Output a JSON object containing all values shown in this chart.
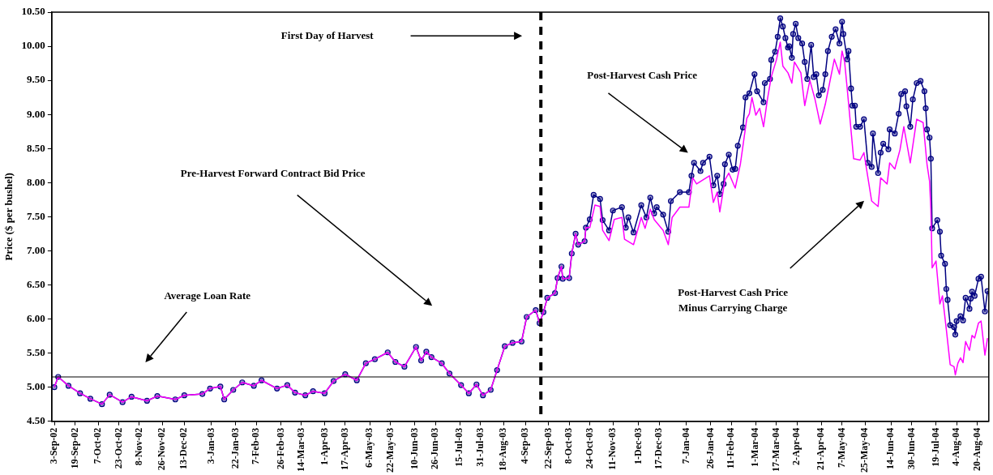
{
  "chart_data": {
    "type": "line",
    "ylabel": "Price ($ per bushel)",
    "ylim": [
      4.5,
      10.5
    ],
    "yticks": [
      {
        "value": 4.5,
        "label": "4.50"
      },
      {
        "value": 5,
        "label": "5.00"
      },
      {
        "value": 5.5,
        "label": "5.50"
      },
      {
        "value": 6,
        "label": "6.00"
      },
      {
        "value": 6.5,
        "label": "6.50"
      },
      {
        "value": 7,
        "label": "7.00"
      },
      {
        "value": 7.5,
        "label": "7.50"
      },
      {
        "value": 8,
        "label": "8.00"
      },
      {
        "value": 8.5,
        "label": "8.50"
      },
      {
        "value": 9,
        "label": "9.00"
      },
      {
        "value": 9.5,
        "label": "9.50"
      },
      {
        "value": 10,
        "label": "10.00"
      },
      {
        "value": 10.5,
        "label": "10.50"
      }
    ],
    "xlim": [
      "2002-09-01",
      "2004-08-29"
    ],
    "xticks": [
      {
        "value": "2002-09-03",
        "label": "3-Sep-02"
      },
      {
        "value": "2002-09-19",
        "label": "19-Sep-02"
      },
      {
        "value": "2002-10-07",
        "label": "7-Oct-02"
      },
      {
        "value": "2002-10-23",
        "label": "23-Oct-02"
      },
      {
        "value": "2002-11-08",
        "label": "8-Nov-02"
      },
      {
        "value": "2002-11-26",
        "label": "26-Nov-02"
      },
      {
        "value": "2002-12-13",
        "label": "13-Dec-02"
      },
      {
        "value": "2003-01-03",
        "label": "3-Jan-03"
      },
      {
        "value": "2003-01-22",
        "label": "22-Jan-03"
      },
      {
        "value": "2003-02-07",
        "label": "7-Feb-03"
      },
      {
        "value": "2003-02-26",
        "label": "26-Feb-03"
      },
      {
        "value": "2003-03-14",
        "label": "14-Mar-03"
      },
      {
        "value": "2003-04-01",
        "label": "1-Apr-03"
      },
      {
        "value": "2003-04-17",
        "label": "17-Apr-03"
      },
      {
        "value": "2003-05-06",
        "label": "6-May-03"
      },
      {
        "value": "2003-05-22",
        "label": "22-May-03"
      },
      {
        "value": "2003-06-10",
        "label": "10-Jun-03"
      },
      {
        "value": "2003-06-26",
        "label": "26-Jun-03"
      },
      {
        "value": "2003-07-15",
        "label": "15-Jul-03"
      },
      {
        "value": "2003-07-31",
        "label": "31-Jul-03"
      },
      {
        "value": "2003-08-18",
        "label": "18-Aug-03"
      },
      {
        "value": "2003-09-04",
        "label": "4-Sep-03"
      },
      {
        "value": "2003-09-22",
        "label": "22-Sep-03"
      },
      {
        "value": "2003-10-08",
        "label": "8-Oct-03"
      },
      {
        "value": "2003-10-24",
        "label": "24-Oct-03"
      },
      {
        "value": "2003-11-11",
        "label": "11-Nov-03"
      },
      {
        "value": "2003-12-01",
        "label": "1-Dec-03"
      },
      {
        "value": "2003-12-17",
        "label": "17-Dec-03"
      },
      {
        "value": "2004-01-07",
        "label": "7-Jan-04"
      },
      {
        "value": "2004-01-26",
        "label": "26-Jan-04"
      },
      {
        "value": "2004-02-11",
        "label": "11-Feb-04"
      },
      {
        "value": "2004-03-01",
        "label": "1-Mar-04"
      },
      {
        "value": "2004-03-17",
        "label": "17-Mar-04"
      },
      {
        "value": "2004-04-02",
        "label": "2-Apr-04"
      },
      {
        "value": "2004-04-21",
        "label": "21-Apr-04"
      },
      {
        "value": "2004-05-07",
        "label": "7-May-04"
      },
      {
        "value": "2004-05-25",
        "label": "25-May-04"
      },
      {
        "value": "2004-06-14",
        "label": "14-Jun-04"
      },
      {
        "value": "2004-06-30",
        "label": "30-Jun-04"
      },
      {
        "value": "2004-07-19",
        "label": "19-Jul-04"
      },
      {
        "value": "2004-08-04",
        "label": "4-Aug-04"
      },
      {
        "value": "2004-08-20",
        "label": "20-Aug-04"
      }
    ],
    "grid": false,
    "legend": false,
    "series": [
      {
        "color": "#ff00ff",
        "marker": "none",
        "x": [
          "2002-09-03",
          "2002-09-06",
          "2002-09-14",
          "2002-09-23",
          "2002-10-01",
          "2002-10-10",
          "2002-10-16",
          "2002-10-26",
          "2002-11-02",
          "2002-11-14",
          "2002-11-22",
          "2002-12-06",
          "2002-12-13",
          "2002-12-27",
          "2003-01-02",
          "2003-01-10",
          "2003-01-13",
          "2003-01-20",
          "2003-01-27",
          "2003-02-05",
          "2003-02-11",
          "2003-02-23",
          "2003-03-03",
          "2003-03-09",
          "2003-03-17",
          "2003-03-23",
          "2003-04-01",
          "2003-04-08",
          "2003-04-17",
          "2003-04-26",
          "2003-05-03",
          "2003-05-10",
          "2003-05-20",
          "2003-05-26",
          "2003-06-02",
          "2003-06-11",
          "2003-06-15",
          "2003-06-19",
          "2003-06-23",
          "2003-07-01",
          "2003-07-07",
          "2003-07-16",
          "2003-07-22",
          "2003-07-28",
          "2003-08-02",
          "2003-08-08",
          "2003-08-13",
          "2003-08-19",
          "2003-08-25",
          "2003-09-01",
          "2003-09-05",
          "2003-09-12",
          "2003-09-15",
          "2003-09-18",
          "2003-09-21",
          "2003-09-27",
          "2003-09-29",
          "2003-10-02",
          "2003-10-03",
          "2003-10-08",
          "2003-10-10",
          "2003-10-13",
          "2003-10-15",
          "2003-10-20",
          "2003-10-21",
          "2003-10-24",
          "2003-10-28",
          "2003-11-01",
          "2003-11-03",
          "2003-11-08",
          "2003-11-12",
          "2003-11-18",
          "2003-11-20",
          "2003-11-27",
          "2003-12-03",
          "2003-12-06",
          "2003-12-10",
          "2003-12-13",
          "2003-12-20",
          "2003-12-24",
          "2003-12-27",
          "2004-01-02",
          "2004-01-09",
          "2004-01-12",
          "2004-01-15",
          "2004-01-20",
          "2004-01-25",
          "2004-01-28",
          "2004-01-31",
          "2004-02-02",
          "2004-02-06",
          "2004-02-09",
          "2004-02-14",
          "2004-02-18",
          "2004-02-23",
          "2004-02-25",
          "2004-02-27",
          "2004-03-01",
          "2004-03-04",
          "2004-03-07",
          "2004-03-10",
          "2004-03-13",
          "2004-03-17",
          "2004-03-20",
          "2004-03-22",
          "2004-03-26",
          "2004-03-29",
          "2004-03-31",
          "2004-04-05",
          "2004-04-08",
          "2004-04-12",
          "2004-04-16",
          "2004-04-20",
          "2004-04-24",
          "2004-04-27",
          "2004-05-01",
          "2004-05-05",
          "2004-05-07",
          "2004-05-09",
          "2004-05-11",
          "2004-05-16",
          "2004-05-21",
          "2004-05-24",
          "2004-05-30",
          "2004-06-04",
          "2004-06-06",
          "2004-06-11",
          "2004-06-13",
          "2004-06-17",
          "2004-06-21",
          "2004-06-24",
          "2004-06-29",
          "2004-07-04",
          "2004-07-09",
          "2004-07-12",
          "2004-07-14",
          "2004-07-15",
          "2004-07-16",
          "2004-07-19",
          "2004-07-22",
          "2004-07-24",
          "2004-07-27",
          "2004-07-30",
          "2004-08-02",
          "2004-08-03",
          "2004-08-05",
          "2004-08-07",
          "2004-08-09",
          "2004-08-11",
          "2004-08-14",
          "2004-08-16",
          "2004-08-18",
          "2004-08-21",
          "2004-08-23",
          "2004-08-26",
          "2004-08-28"
        ],
        "values": [
          5.0,
          5.15,
          5.02,
          4.91,
          4.83,
          4.75,
          4.89,
          4.78,
          4.86,
          4.8,
          4.87,
          4.82,
          4.88,
          4.9,
          4.98,
          5.01,
          4.82,
          4.96,
          5.07,
          5.02,
          5.1,
          4.98,
          5.03,
          4.92,
          4.88,
          4.94,
          4.91,
          5.09,
          5.19,
          5.1,
          5.35,
          5.41,
          5.51,
          5.37,
          5.3,
          5.59,
          5.39,
          5.52,
          5.44,
          5.35,
          5.2,
          5.03,
          4.91,
          5.04,
          4.88,
          4.96,
          5.25,
          5.6,
          5.65,
          5.67,
          6.03,
          6.13,
          5.94,
          6.1,
          6.31,
          6.38,
          6.6,
          6.77,
          6.59,
          6.6,
          6.96,
          7.25,
          7.09,
          7.14,
          7.34,
          7.34,
          7.67,
          7.65,
          7.3,
          7.15,
          7.46,
          7.49,
          7.17,
          7.09,
          7.49,
          7.33,
          7.61,
          7.46,
          7.3,
          7.09,
          7.49,
          7.64,
          7.64,
          8.07,
          7.98,
          8.04,
          8.1,
          7.71,
          7.86,
          7.57,
          8.04,
          8.14,
          7.92,
          8.27,
          8.94,
          9.01,
          9.25,
          8.99,
          9.09,
          8.82,
          9.22,
          9.55,
          9.8,
          10.06,
          9.71,
          9.61,
          9.46,
          9.77,
          9.61,
          9.13,
          9.5,
          9.22,
          8.86,
          9.15,
          9.43,
          9.81,
          9.59,
          9.93,
          9.77,
          9.38,
          8.35,
          8.33,
          8.44,
          7.73,
          7.65,
          8.07,
          7.98,
          8.29,
          8.2,
          8.48,
          8.82,
          8.29,
          8.93,
          8.88,
          8.27,
          8.02,
          7.61,
          6.75,
          6.85,
          6.22,
          6.34,
          5.85,
          5.33,
          5.3,
          5.18,
          5.35,
          5.43,
          5.36,
          5.67,
          5.54,
          5.76,
          5.72,
          5.94,
          5.97,
          5.47,
          5.72
        ]
      },
      {
        "color": "#000080",
        "marker": "circle",
        "x": [
          "2002-09-03",
          "2002-09-06",
          "2002-09-14",
          "2002-09-23",
          "2002-10-01",
          "2002-10-10",
          "2002-10-16",
          "2002-10-26",
          "2002-11-02",
          "2002-11-14",
          "2002-11-22",
          "2002-12-06",
          "2002-12-13",
          "2002-12-27",
          "2003-01-02",
          "2003-01-10",
          "2003-01-13",
          "2003-01-20",
          "2003-01-27",
          "2003-02-05",
          "2003-02-11",
          "2003-02-23",
          "2003-03-03",
          "2003-03-09",
          "2003-03-17",
          "2003-03-23",
          "2003-04-01",
          "2003-04-08",
          "2003-04-17",
          "2003-04-26",
          "2003-05-03",
          "2003-05-10",
          "2003-05-20",
          "2003-05-26",
          "2003-06-02",
          "2003-06-11",
          "2003-06-15",
          "2003-06-19",
          "2003-06-23",
          "2003-07-01",
          "2003-07-07",
          "2003-07-16",
          "2003-07-22",
          "2003-07-28",
          "2003-08-02",
          "2003-08-08",
          "2003-08-13",
          "2003-08-19",
          "2003-08-25",
          "2003-09-01",
          "2003-09-05",
          "2003-09-12",
          "2003-09-15",
          "2003-09-18",
          "2003-09-21",
          "2003-09-27",
          "2003-09-29",
          "2003-10-02",
          "2003-10-03",
          "2003-10-08",
          "2003-10-10",
          "2003-10-13",
          "2003-10-15",
          "2003-10-20",
          "2003-10-21",
          "2003-10-24",
          "2003-10-27",
          "2003-11-01",
          "2003-11-03",
          "2003-11-08",
          "2003-11-11",
          "2003-11-18",
          "2003-11-21",
          "2003-11-23",
          "2003-11-27",
          "2003-12-03",
          "2003-12-07",
          "2003-12-10",
          "2003-12-13",
          "2003-12-15",
          "2003-12-20",
          "2003-12-24",
          "2003-12-26",
          "2004-01-02",
          "2004-01-09",
          "2004-01-11",
          "2004-01-13",
          "2004-01-18",
          "2004-01-20",
          "2004-01-25",
          "2004-01-28",
          "2004-01-31",
          "2004-02-02",
          "2004-02-05",
          "2004-02-06",
          "2004-02-09",
          "2004-02-12",
          "2004-02-14",
          "2004-02-16",
          "2004-02-20",
          "2004-02-22",
          "2004-02-25",
          "2004-02-29",
          "2004-03-02",
          "2004-03-07",
          "2004-03-08",
          "2004-03-12",
          "2004-03-13",
          "2004-03-16",
          "2004-03-18",
          "2004-03-20",
          "2004-03-22",
          "2004-03-24",
          "2004-03-26",
          "2004-03-27",
          "2004-03-29",
          "2004-03-30",
          "2004-04-01",
          "2004-04-03",
          "2004-04-06",
          "2004-04-08",
          "2004-04-10",
          "2004-04-13",
          "2004-04-15",
          "2004-04-17",
          "2004-04-19",
          "2004-04-22",
          "2004-04-24",
          "2004-04-26",
          "2004-04-29",
          "2004-05-02",
          "2004-05-05",
          "2004-05-07",
          "2004-05-08",
          "2004-05-11",
          "2004-05-12",
          "2004-05-14",
          "2004-05-15",
          "2004-05-17",
          "2004-05-18",
          "2004-05-21",
          "2004-05-24",
          "2004-05-27",
          "2004-05-30",
          "2004-05-31",
          "2004-06-04",
          "2004-06-06",
          "2004-06-08",
          "2004-06-12",
          "2004-06-13",
          "2004-06-17",
          "2004-06-20",
          "2004-06-22",
          "2004-06-25",
          "2004-06-26",
          "2004-06-29",
          "2004-07-01",
          "2004-07-04",
          "2004-07-07",
          "2004-07-10",
          "2004-07-11",
          "2004-07-12",
          "2004-07-14",
          "2004-07-15",
          "2004-07-16",
          "2004-07-20",
          "2004-07-22",
          "2004-07-23",
          "2004-07-26",
          "2004-07-27",
          "2004-07-28",
          "2004-07-30",
          "2004-08-02",
          "2004-08-03",
          "2004-08-04",
          "2004-08-07",
          "2004-08-09",
          "2004-08-11",
          "2004-08-14",
          "2004-08-15",
          "2004-08-16",
          "2004-08-18",
          "2004-08-21",
          "2004-08-23",
          "2004-08-26",
          "2004-08-28"
        ],
        "values": [
          5.0,
          5.15,
          5.02,
          4.91,
          4.83,
          4.75,
          4.89,
          4.78,
          4.86,
          4.8,
          4.87,
          4.82,
          4.88,
          4.9,
          4.98,
          5.01,
          4.82,
          4.96,
          5.07,
          5.02,
          5.1,
          4.98,
          5.03,
          4.92,
          4.88,
          4.94,
          4.91,
          5.09,
          5.19,
          5.1,
          5.35,
          5.41,
          5.51,
          5.37,
          5.3,
          5.59,
          5.39,
          5.52,
          5.44,
          5.35,
          5.2,
          5.03,
          4.91,
          5.04,
          4.88,
          4.96,
          5.25,
          5.6,
          5.65,
          5.67,
          6.03,
          6.13,
          5.94,
          6.1,
          6.31,
          6.38,
          6.6,
          6.77,
          6.59,
          6.6,
          6.96,
          7.25,
          7.09,
          7.14,
          7.34,
          7.46,
          7.82,
          7.76,
          7.45,
          7.3,
          7.59,
          7.64,
          7.34,
          7.49,
          7.27,
          7.67,
          7.49,
          7.78,
          7.55,
          7.64,
          7.53,
          7.28,
          7.73,
          7.86,
          7.86,
          8.1,
          8.29,
          8.17,
          8.29,
          8.38,
          7.96,
          8.1,
          7.83,
          7.98,
          8.27,
          8.41,
          8.19,
          8.2,
          8.54,
          8.81,
          9.25,
          9.31,
          9.59,
          9.34,
          9.18,
          9.46,
          9.52,
          9.8,
          9.92,
          10.14,
          10.41,
          10.29,
          10.12,
          9.98,
          10.0,
          9.83,
          10.18,
          10.33,
          10.12,
          10.04,
          9.77,
          9.52,
          10.02,
          9.55,
          9.59,
          9.28,
          9.36,
          9.59,
          9.93,
          10.14,
          10.25,
          10.04,
          10.36,
          10.18,
          9.81,
          9.93,
          9.38,
          9.13,
          9.13,
          8.82,
          8.82,
          8.93,
          8.29,
          8.23,
          8.72,
          8.14,
          8.44,
          8.57,
          8.49,
          8.78,
          8.72,
          9.01,
          9.3,
          9.34,
          9.12,
          8.82,
          9.22,
          9.46,
          9.49,
          9.34,
          9.09,
          8.78,
          8.66,
          8.35,
          7.33,
          7.45,
          7.28,
          6.93,
          6.81,
          6.44,
          6.28,
          5.91,
          5.88,
          5.77,
          5.97,
          6.04,
          5.98,
          6.31,
          6.15,
          6.3,
          6.4,
          6.34,
          6.59,
          6.62,
          6.11,
          6.41
        ]
      }
    ],
    "ref_lines": [
      {
        "axis": "x",
        "value": "2003-09-16",
        "line_style": "dashed",
        "color": "#000000"
      },
      {
        "axis": "y",
        "value": 5.15,
        "line_style": "solid",
        "color": "#000000"
      }
    ],
    "annotations": [
      "First Day of Harvest",
      "Post-Harvest Cash Price",
      "Pre-Harvest Forward Contract Bid Price",
      "Average Loan Rate",
      "Post-Harvest Cash Price\nMinus Carrying Charge"
    ]
  }
}
